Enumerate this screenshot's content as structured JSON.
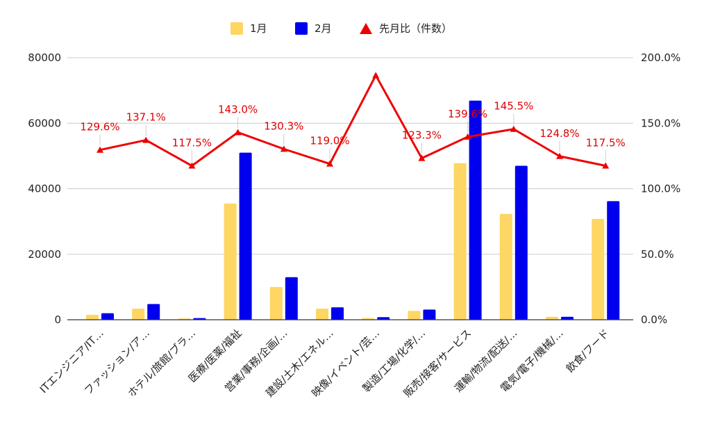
{
  "chart_data": {
    "type": "bar",
    "categories": [
      "ITエンジニア/IT…",
      "ファッション/ア…",
      "ホテル/旅館/ブラ…",
      "医療/医薬/福祉",
      "営業/事務/企画/…",
      "建設/土木/エネル…",
      "映像/イベント/芸…",
      "製造/工場/化学/…",
      "販売/接客/サービス",
      "運輸/物流/配送/…",
      "電気/電子/機械/…",
      "飲食/フード"
    ],
    "series": [
      {
        "name": "1月",
        "color": "#fdd663",
        "values": [
          1500,
          3400,
          400,
          35500,
          10000,
          3400,
          500,
          2700,
          47800,
          32300,
          900,
          30800
        ]
      },
      {
        "name": "2月",
        "color": "#0000ee",
        "values": [
          2000,
          4800,
          500,
          51000,
          13000,
          3800,
          800,
          3100,
          66900,
          47000,
          900,
          36200
        ]
      }
    ],
    "line_series": {
      "name": "先月比（件数）",
      "color": "#ee0000",
      "axis": "right",
      "values": [
        129.6,
        137.1,
        117.5,
        143.0,
        130.3,
        119.0,
        186.5,
        123.3,
        139.6,
        145.5,
        124.8,
        117.5
      ],
      "labels": [
        "129.6%",
        "137.1%",
        "117.5%",
        "143.0%",
        "130.3%",
        "119.0%",
        "",
        "123.3%",
        "139.6%",
        "145.5%",
        "124.8%",
        "117.5%"
      ]
    },
    "y_left": {
      "min": 0,
      "max": 80000,
      "ticks": [
        "0",
        "20000",
        "40000",
        "60000",
        "80000"
      ]
    },
    "y_right": {
      "min": 0,
      "max": 200,
      "ticks": [
        "0.0%",
        "50.0%",
        "100.0%",
        "150.0%",
        "200.0%"
      ]
    },
    "legend": {
      "position": "top"
    },
    "grid": true
  }
}
